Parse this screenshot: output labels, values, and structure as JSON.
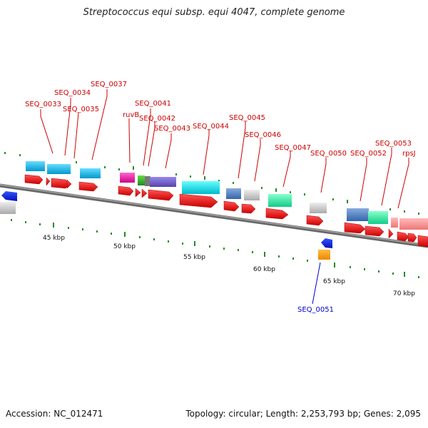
{
  "title": "Streptococcus equi subsp. equi 4047, complete genome",
  "footer": {
    "accession": "Accession: NC_012471",
    "summary": "Topology: circular; Length: 2,253,793 bp; Genes: 2,095"
  },
  "scale_labels": [
    "45 kbp",
    "50 kbp",
    "55 kbp",
    "60 kbp",
    "65 kbp",
    "70 kbp"
  ],
  "gene_labels_top": [
    "SEQ_0033",
    "SEQ_0034",
    "SEQ_0035",
    "SEQ_0037",
    "ruvB",
    "SEQ_0041",
    "SEQ_0042",
    "SEQ_0043",
    "SEQ_0044",
    "SEQ_0045",
    "SEQ_0046",
    "SEQ_0047",
    "SEQ_0050",
    "SEQ_0052",
    "SEQ_0053",
    "rpsJ"
  ],
  "gene_labels_bottom": [
    "SEQ_0051"
  ],
  "colors": {
    "label_red": "#cc0000",
    "label_blue": "#0000cc",
    "backbone": "#7a7a7a",
    "cds": "#ee0000",
    "tick_green": "#2a8a2a"
  }
}
